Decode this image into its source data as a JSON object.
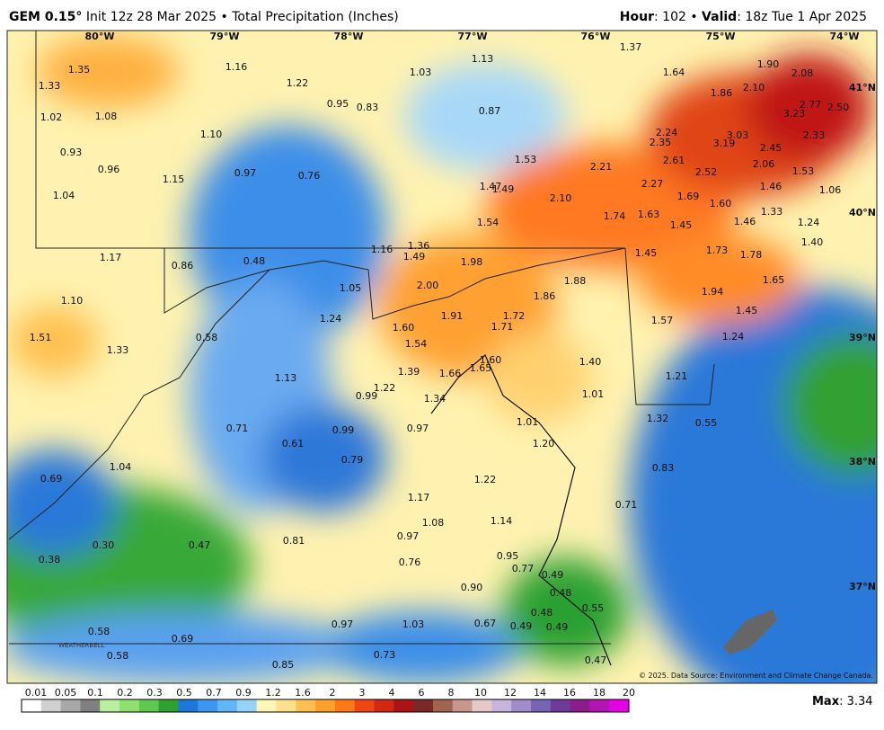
{
  "header": {
    "model": "GEM 0.15°",
    "init": "Init 12z 28 Mar 2025 • Total Precipitation (Inches)",
    "hour_label": "Hour",
    "hour_value": ": 102 • ",
    "valid_label": "Valid",
    "valid_value": ": 18z Tue 1 Apr 2025"
  },
  "map": {
    "lon_labels": [
      "80°W",
      "79°W",
      "78°W",
      "77°W",
      "76°W",
      "75°W",
      "74°W"
    ],
    "lat_labels": [
      "41°N",
      "40°N",
      "39°N",
      "38°N",
      "37°N"
    ],
    "labels": [
      "1.35",
      "1.33",
      "1.02",
      "1.08",
      "0.93",
      "0.96",
      "1.04",
      "1.16",
      "1.22",
      "1.10",
      "1.15",
      "0.97",
      "0.76",
      "0.95",
      "0.83",
      "1.03",
      "1.13",
      "0.87",
      "1.37",
      "1.64",
      "1.90",
      "2.08",
      "1.86",
      "2.10",
      "2.77",
      "2.50",
      "3.23",
      "2.24",
      "2.35",
      "3.03",
      "3.19",
      "2.45",
      "2.33",
      "2.61",
      "2.52",
      "2.06",
      "1.53",
      "1.53",
      "2.21",
      "1.47",
      "1.49",
      "2.10",
      "2.27",
      "1.69",
      "1.60",
      "1.46",
      "1.06",
      "1.33",
      "1.24",
      "1.74",
      "1.63",
      "1.45",
      "1.46",
      "1.54",
      "1.40",
      "1.16",
      "1.36",
      "1.49",
      "1.17",
      "0.86",
      "0.48",
      "1.98",
      "1.73",
      "1.78",
      "1.45",
      "2.00",
      "1.88",
      "1.86",
      "1.94",
      "1.65",
      "1.05",
      "1.10",
      "1.24",
      "1.91",
      "1.72",
      "1.45",
      "1.57",
      "1.60",
      "1.71",
      "1.51",
      "1.33",
      "0.58",
      "1.54",
      "1.24",
      "1.39",
      "1.66",
      "1.65",
      "1.60",
      "1.40",
      "1.21",
      "1.13",
      "1.22",
      "1.34",
      "0.99",
      "1.01",
      "1.32",
      "0.71",
      "0.61",
      "0.99",
      "0.97",
      "1.01",
      "0.55",
      "1.20",
      "1.04",
      "0.79",
      "0.83",
      "0.69",
      "1.22",
      "1.17",
      "0.71",
      "1.08",
      "1.14",
      "0.97",
      "0.30",
      "0.47",
      "0.81",
      "0.38",
      "0.76",
      "0.95",
      "0.77",
      "0.49",
      "0.90",
      "0.48",
      "0.55",
      "0.48",
      "0.67",
      "0.49",
      "0.49",
      "0.97",
      "1.03",
      "0.58",
      "0.69",
      "0.58",
      "0.73",
      "0.85",
      "0.47"
    ],
    "copyright": "© 2025. Data Source: Environment and Climate Change Canada.",
    "logo": "WEATHERBELL"
  },
  "colorbar": {
    "ticks": [
      "0.01",
      "0.05",
      "0.1",
      "0.2",
      "0.3",
      "0.5",
      "0.7",
      "0.9",
      "1.2",
      "1.6",
      "2",
      "3",
      "4",
      "6",
      "8",
      "10",
      "12",
      "14",
      "16",
      "18",
      "20"
    ],
    "colors": [
      "#ffffff",
      "#d0d0d0",
      "#a8a8a8",
      "#808080",
      "#b8f0a0",
      "#90e070",
      "#60c850",
      "#30a030",
      "#1e78dc",
      "#3c96f0",
      "#64b4f8",
      "#96d2fa",
      "#fff5b4",
      "#ffe08c",
      "#ffc050",
      "#ffa028",
      "#ff7814",
      "#f04614",
      "#d22814",
      "#aa1414",
      "#7a2828",
      "#a06450",
      "#c8968c",
      "#e6c8c8",
      "#c8b4dc",
      "#a08cc8",
      "#7864b4",
      "#6e3c96",
      "#8c1e8c",
      "#b414b4",
      "#e600e6"
    ]
  },
  "footer": {
    "max_label": "Max",
    "max_value": ": 3.34"
  }
}
